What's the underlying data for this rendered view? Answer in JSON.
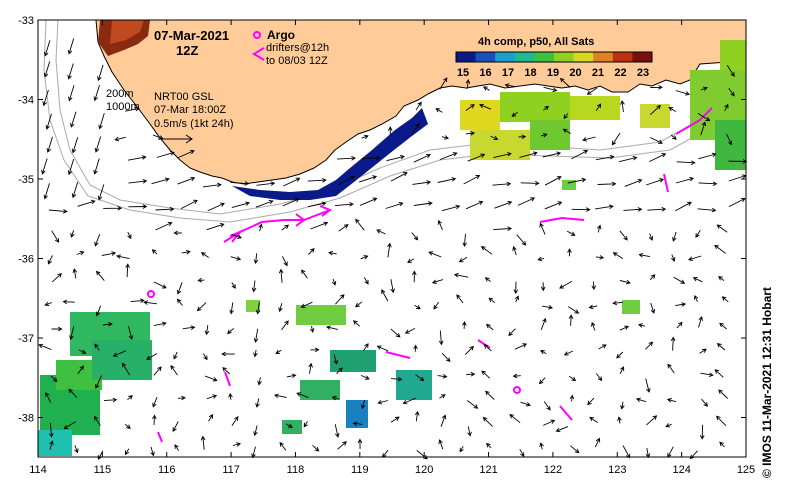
{
  "header": {
    "date": "07-Mar-2021",
    "time": "12Z"
  },
  "legend": {
    "argo_label": "Argo",
    "argo_color": "#ff00ff",
    "drifters_label": "drifters@12h",
    "drifters_sublabel": "to 08/03 12Z",
    "drifter_color": "#ff00ff"
  },
  "colorbar": {
    "title": "4h comp, p50, All Sats",
    "ticks": [
      "15",
      "16",
      "17",
      "18",
      "19",
      "20",
      "21",
      "22",
      "23"
    ]
  },
  "annotations": {
    "isobath_1": "200m",
    "isobath_2": "1000m",
    "model_line1": "NRT00 GSL",
    "model_line2": "07-Mar 18:00Z",
    "scale_label": "0.5m/s (1kt 24h)"
  },
  "axes": {
    "x_ticks": [
      "114",
      "115",
      "116",
      "117",
      "118",
      "119",
      "120",
      "121",
      "122",
      "123",
      "124",
      "125"
    ],
    "y_ticks": [
      "-33",
      "-34",
      "-35",
      "-36",
      "-37",
      "-38"
    ]
  },
  "credit": "© IMOS 11-Mar-2021 12:31 Hobart",
  "colors": {
    "land": "#ffcc99",
    "coast": "#000000",
    "isobath": "#aaaaaa",
    "sst_ramp": [
      "#0a1a8a",
      "#1a4fc0",
      "#1aa0d0",
      "#20b890",
      "#40c040",
      "#90d020",
      "#d8d820",
      "#e08020",
      "#c03010",
      "#7a1010"
    ]
  }
}
